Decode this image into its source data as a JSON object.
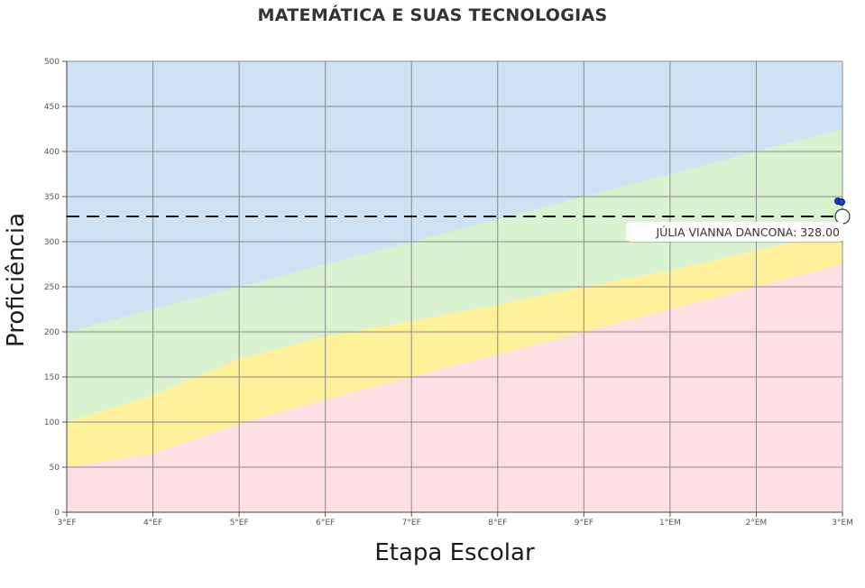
{
  "chart_data": {
    "type": "area",
    "title": "MATEMÁTICA E SUAS TECNOLOGIAS",
    "xlabel": "Etapa Escolar",
    "ylabel": "Proficiência",
    "categories": [
      "3°EF",
      "4°EF",
      "5°EF",
      "6°EF",
      "7°EF",
      "8°EF",
      "9°EF",
      "1°EM",
      "2°EM",
      "3°EM"
    ],
    "ylim": [
      0,
      500
    ],
    "yticks": [
      0,
      50,
      100,
      150,
      200,
      250,
      300,
      350,
      400,
      450,
      500
    ],
    "grid": true,
    "bands": [
      {
        "upper": [
          500,
          500,
          500,
          500,
          500,
          500,
          500,
          500,
          500,
          500
        ],
        "color": "#cfe2f3"
      },
      {
        "upper": [
          200,
          225,
          250,
          275,
          300,
          325,
          350,
          375,
          400,
          425
        ],
        "color": "#d9f2d0"
      },
      {
        "upper": [
          100,
          130,
          170,
          195,
          212,
          230,
          250,
          268,
          290,
          312
        ],
        "color": "#fff09a"
      },
      {
        "upper": [
          50,
          65,
          98,
          125,
          150,
          175,
          200,
          225,
          250,
          275
        ],
        "color": "#fde0e3"
      }
    ],
    "reference_line": {
      "value": 328.0,
      "style": "dashed",
      "color": "#111111"
    },
    "markers": [
      {
        "x": "3°EM",
        "y": 345,
        "color": "#1f3fc7"
      }
    ],
    "highlight": {
      "x": "3°EM",
      "y": 328.0,
      "label": "JÚLIA VIANNA DANCONA: 328.00"
    }
  }
}
